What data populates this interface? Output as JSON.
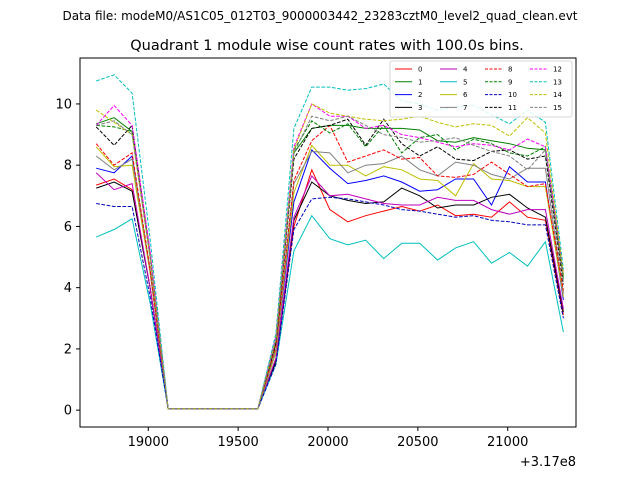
{
  "suptitle": "Data file: modeM0/AS1C05_012T03_9000003442_23283cztM0_level2_quad_clean.evt",
  "chart_data": {
    "type": "line",
    "title": "Quadrant 1 module wise count rates with 100.0s bins.",
    "xlabel": "",
    "ylabel": "",
    "x_offset_label": "+3.17e8",
    "xlim": [
      18620,
      21380
    ],
    "ylim": [
      -0.55,
      11.5
    ],
    "xticks": [
      19000,
      19500,
      20000,
      20500,
      21000
    ],
    "yticks": [
      0,
      2,
      4,
      6,
      8,
      10
    ],
    "grid": false,
    "legend_position": "top-right",
    "x": [
      18710,
      18810,
      18910,
      19010,
      19110,
      19210,
      19310,
      19410,
      19510,
      19610,
      19710,
      19810,
      19910,
      20010,
      20110,
      20210,
      20310,
      20410,
      20510,
      20610,
      20710,
      20810,
      20910,
      21010,
      21110,
      21210,
      21310
    ],
    "series": [
      {
        "name": "0",
        "color": "#ff0000",
        "dash": "solid",
        "values": [
          7.35,
          7.55,
          7.2,
          4.0,
          0.05,
          0.05,
          0.05,
          0.05,
          0.05,
          0.05,
          1.6,
          6.0,
          7.85,
          6.55,
          6.15,
          6.35,
          6.5,
          6.65,
          6.5,
          6.7,
          6.35,
          6.4,
          6.3,
          6.8,
          6.3,
          6.2,
          3.1
        ]
      },
      {
        "name": "1",
        "color": "#008000",
        "dash": "solid",
        "values": [
          9.35,
          9.55,
          9.1,
          5.0,
          0.05,
          0.05,
          0.05,
          0.05,
          0.05,
          0.05,
          2.2,
          8.4,
          9.2,
          9.3,
          9.3,
          9.2,
          9.2,
          9.2,
          9.15,
          8.8,
          8.75,
          8.9,
          8.8,
          8.7,
          8.55,
          8.5,
          4.3
        ]
      },
      {
        "name": "2",
        "color": "#0000ff",
        "dash": "solid",
        "values": [
          7.9,
          7.75,
          8.3,
          4.5,
          0.05,
          0.05,
          0.05,
          0.05,
          0.05,
          0.05,
          1.9,
          6.8,
          8.5,
          7.9,
          7.4,
          7.5,
          7.65,
          7.45,
          7.15,
          7.2,
          7.55,
          7.55,
          6.7,
          7.95,
          7.45,
          7.45,
          3.6
        ]
      },
      {
        "name": "3",
        "color": "#000000",
        "dash": "solid",
        "values": [
          7.25,
          7.45,
          7.15,
          4.0,
          0.05,
          0.05,
          0.05,
          0.05,
          0.05,
          0.05,
          1.6,
          6.2,
          7.45,
          7.0,
          6.85,
          6.75,
          6.8,
          7.25,
          7.0,
          6.6,
          6.7,
          6.7,
          6.95,
          7.05,
          6.6,
          6.3,
          3.2
        ]
      },
      {
        "name": "4",
        "color": "#bf00bf",
        "dash": "solid",
        "values": [
          7.75,
          7.2,
          7.4,
          4.0,
          0.05,
          0.05,
          0.05,
          0.05,
          0.05,
          0.05,
          1.7,
          6.3,
          7.65,
          7.0,
          7.05,
          6.9,
          6.75,
          6.7,
          6.7,
          6.95,
          6.85,
          6.85,
          6.55,
          6.4,
          6.55,
          6.55,
          3.3
        ]
      },
      {
        "name": "5",
        "color": "#00bfbf",
        "dash": "solid",
        "values": [
          5.65,
          5.9,
          6.25,
          3.5,
          0.05,
          0.05,
          0.05,
          0.05,
          0.05,
          0.05,
          1.5,
          5.2,
          6.35,
          5.6,
          5.4,
          5.55,
          4.95,
          5.45,
          5.45,
          4.9,
          5.3,
          5.5,
          4.8,
          5.15,
          4.7,
          5.5,
          2.55
        ]
      },
      {
        "name": "6",
        "color": "#bfbf00",
        "dash": "solid",
        "values": [
          8.6,
          7.95,
          8.0,
          4.5,
          0.05,
          0.05,
          0.05,
          0.05,
          0.05,
          0.05,
          1.9,
          7.1,
          8.65,
          8.0,
          8.0,
          7.65,
          7.95,
          7.85,
          7.55,
          7.5,
          7.0,
          8.05,
          7.55,
          7.5,
          7.3,
          7.3,
          3.7
        ]
      },
      {
        "name": "7",
        "color": "#808080",
        "dash": "solid",
        "values": [
          8.3,
          7.85,
          8.2,
          4.6,
          0.05,
          0.05,
          0.05,
          0.05,
          0.05,
          0.05,
          2.0,
          7.4,
          8.45,
          8.4,
          7.75,
          8.0,
          8.05,
          8.3,
          7.85,
          7.65,
          8.1,
          8.0,
          7.7,
          7.55,
          7.9,
          7.9,
          3.8
        ]
      },
      {
        "name": "8",
        "color": "#ff0000",
        "dash": "dashed",
        "values": [
          8.7,
          8.0,
          8.4,
          4.6,
          0.05,
          0.05,
          0.05,
          0.05,
          0.05,
          0.05,
          2.1,
          7.5,
          8.8,
          9.3,
          8.1,
          8.3,
          8.5,
          8.2,
          8.25,
          7.65,
          7.6,
          7.7,
          8.1,
          7.7,
          7.3,
          7.4,
          3.9
        ]
      },
      {
        "name": "9",
        "color": "#008000",
        "dash": "dashed",
        "values": [
          9.3,
          9.25,
          9.1,
          5.0,
          0.05,
          0.05,
          0.05,
          0.05,
          0.05,
          0.05,
          2.3,
          8.5,
          9.45,
          9.05,
          9.35,
          8.6,
          9.3,
          8.4,
          8.9,
          9.0,
          8.5,
          8.85,
          8.7,
          8.4,
          8.3,
          8.6,
          4.4
        ]
      },
      {
        "name": "10",
        "color": "#0000bf",
        "dash": "dashed",
        "values": [
          6.75,
          6.65,
          6.65,
          3.7,
          0.05,
          0.05,
          0.05,
          0.05,
          0.05,
          0.05,
          1.5,
          5.9,
          6.9,
          6.95,
          6.9,
          6.8,
          6.7,
          6.55,
          6.5,
          6.4,
          6.3,
          6.35,
          6.2,
          6.15,
          6.05,
          6.05,
          3.0
        ]
      },
      {
        "name": "11",
        "color": "#000000",
        "dash": "dashed",
        "values": [
          9.25,
          8.65,
          9.3,
          5.1,
          0.05,
          0.05,
          0.05,
          0.05,
          0.05,
          0.05,
          2.2,
          8.2,
          9.2,
          9.3,
          9.5,
          8.65,
          9.5,
          8.7,
          8.3,
          8.6,
          8.2,
          8.15,
          8.45,
          8.5,
          8.2,
          8.3,
          4.1
        ]
      },
      {
        "name": "12",
        "color": "#ff00ff",
        "dash": "dashed",
        "values": [
          9.3,
          9.95,
          9.3,
          5.2,
          0.05,
          0.05,
          0.05,
          0.05,
          0.05,
          0.05,
          2.4,
          8.6,
          10.0,
          9.6,
          9.6,
          9.2,
          9.3,
          9.0,
          8.9,
          8.75,
          8.6,
          8.7,
          8.65,
          8.5,
          8.85,
          8.6,
          4.5
        ]
      },
      {
        "name": "13",
        "color": "#00bfbf",
        "dash": "dashed",
        "values": [
          10.75,
          10.95,
          10.35,
          5.6,
          0.05,
          0.05,
          0.05,
          0.05,
          0.05,
          0.05,
          2.5,
          9.2,
          10.55,
          10.55,
          10.45,
          10.5,
          10.65,
          10.1,
          10.0,
          9.8,
          9.9,
          9.95,
          9.65,
          9.35,
          9.8,
          9.4,
          4.6
        ]
      },
      {
        "name": "14",
        "color": "#bfbf00",
        "dash": "dashed",
        "values": [
          9.8,
          9.4,
          9.0,
          5.0,
          0.05,
          0.05,
          0.05,
          0.05,
          0.05,
          0.05,
          2.3,
          8.5,
          10.0,
          9.7,
          9.6,
          9.5,
          9.45,
          9.5,
          9.6,
          9.4,
          9.25,
          9.35,
          9.3,
          8.95,
          9.55,
          9.05,
          4.4
        ]
      },
      {
        "name": "15",
        "color": "#808080",
        "dash": "dashed",
        "values": [
          9.3,
          9.45,
          9.0,
          5.0,
          0.05,
          0.05,
          0.05,
          0.05,
          0.05,
          0.05,
          2.3,
          8.4,
          9.6,
          9.45,
          9.6,
          9.3,
          9.0,
          8.9,
          8.75,
          8.8,
          8.9,
          8.65,
          8.45,
          8.3,
          7.85,
          8.5,
          4.2
        ]
      }
    ]
  }
}
